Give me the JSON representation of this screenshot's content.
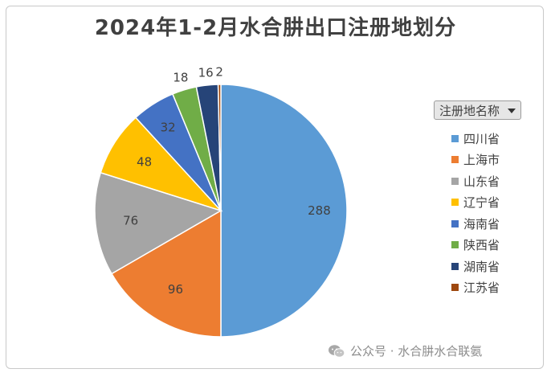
{
  "title": "2024年1-2月水合肼出口注册地划分",
  "legend": {
    "header": "注册地名称"
  },
  "watermark": "公众号 · 水合肼水合联氨",
  "chart_data": {
    "type": "pie",
    "title": "2024年1-2月水合肼出口注册地划分",
    "categories": [
      "四川省",
      "上海市",
      "山东省",
      "辽宁省",
      "海南省",
      "陕西省",
      "湖南省",
      "江苏省"
    ],
    "values": [
      288,
      96,
      76,
      48,
      32,
      18,
      16,
      2
    ],
    "colors": [
      "#5b9bd5",
      "#ed7d31",
      "#a5a5a5",
      "#ffc000",
      "#4472c4",
      "#70ad47",
      "#264478",
      "#9e480e"
    ],
    "legend_position": "right"
  }
}
